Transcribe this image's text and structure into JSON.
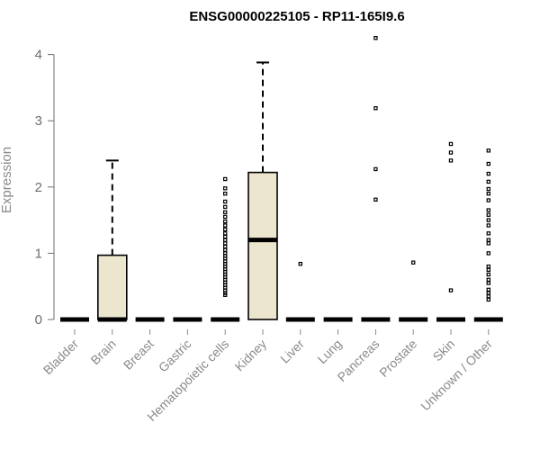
{
  "chart_data": {
    "type": "box",
    "title": "ENSG00000225105 - RP11-165I9.6",
    "xlabel": "",
    "ylabel": "Expression",
    "ylim": [
      0,
      4.2
    ],
    "yticks": [
      0,
      1,
      2,
      3,
      4
    ],
    "box_fill": "#ede6cf",
    "stroke_color": "#000000",
    "categories": [
      "Bladder",
      "Brain",
      "Breast",
      "Gastric",
      "Hematopoietic cells",
      "Kidney",
      "Liver",
      "Lung",
      "Pancreas",
      "Prostate",
      "Skin",
      "Unknown / Other"
    ],
    "boxes": [
      {
        "category": "Bladder",
        "min": 0,
        "q1": 0,
        "median": 0,
        "q3": 0,
        "max": 0,
        "outliers": []
      },
      {
        "category": "Brain",
        "min": 0,
        "q1": 0,
        "median": 0,
        "q3": 0.97,
        "max": 2.4,
        "outliers": []
      },
      {
        "category": "Breast",
        "min": 0,
        "q1": 0,
        "median": 0,
        "q3": 0,
        "max": 0,
        "outliers": []
      },
      {
        "category": "Gastric",
        "min": 0,
        "q1": 0,
        "median": 0,
        "q3": 0,
        "max": 0,
        "outliers": []
      },
      {
        "category": "Hematopoietic cells",
        "min": 0,
        "q1": 0,
        "median": 0,
        "q3": 0,
        "max": 0,
        "outliers": [
          2.12,
          1.98,
          1.9,
          1.78,
          1.7,
          1.62,
          1.55,
          1.48,
          1.42,
          1.36,
          1.3,
          1.25,
          1.2,
          1.15,
          1.1,
          1.05,
          1.0,
          0.96,
          0.92,
          0.88,
          0.84,
          0.8,
          0.76,
          0.72,
          0.68,
          0.64,
          0.6,
          0.56,
          0.52,
          0.48,
          0.44,
          0.4,
          0.37
        ]
      },
      {
        "category": "Kidney",
        "min": 0,
        "q1": 0,
        "median": 1.2,
        "q3": 2.22,
        "max": 3.88,
        "outliers": []
      },
      {
        "category": "Liver",
        "min": 0,
        "q1": 0,
        "median": 0,
        "q3": 0,
        "max": 0,
        "outliers": [
          0.84
        ]
      },
      {
        "category": "Lung",
        "min": 0,
        "q1": 0,
        "median": 0,
        "q3": 0,
        "max": 0,
        "outliers": []
      },
      {
        "category": "Pancreas",
        "min": 0,
        "q1": 0,
        "median": 0,
        "q3": 0,
        "max": 0,
        "outliers": [
          4.25,
          3.19,
          2.27,
          1.81
        ]
      },
      {
        "category": "Prostate",
        "min": 0,
        "q1": 0,
        "median": 0,
        "q3": 0,
        "max": 0,
        "outliers": [
          0.86
        ]
      },
      {
        "category": "Skin",
        "min": 0,
        "q1": 0,
        "median": 0,
        "q3": 0,
        "max": 0,
        "outliers": [
          2.65,
          2.52,
          2.4,
          0.44
        ]
      },
      {
        "category": "Unknown / Other",
        "min": 0,
        "q1": 0,
        "median": 0,
        "q3": 0,
        "max": 0,
        "outliers": [
          2.55,
          2.35,
          2.2,
          2.08,
          1.97,
          1.9,
          1.8,
          1.65,
          1.58,
          1.5,
          1.42,
          1.3,
          1.2,
          1.15,
          1.0,
          0.8,
          0.75,
          0.68,
          0.6,
          0.55,
          0.45,
          0.4,
          0.35,
          0.3
        ]
      }
    ]
  }
}
